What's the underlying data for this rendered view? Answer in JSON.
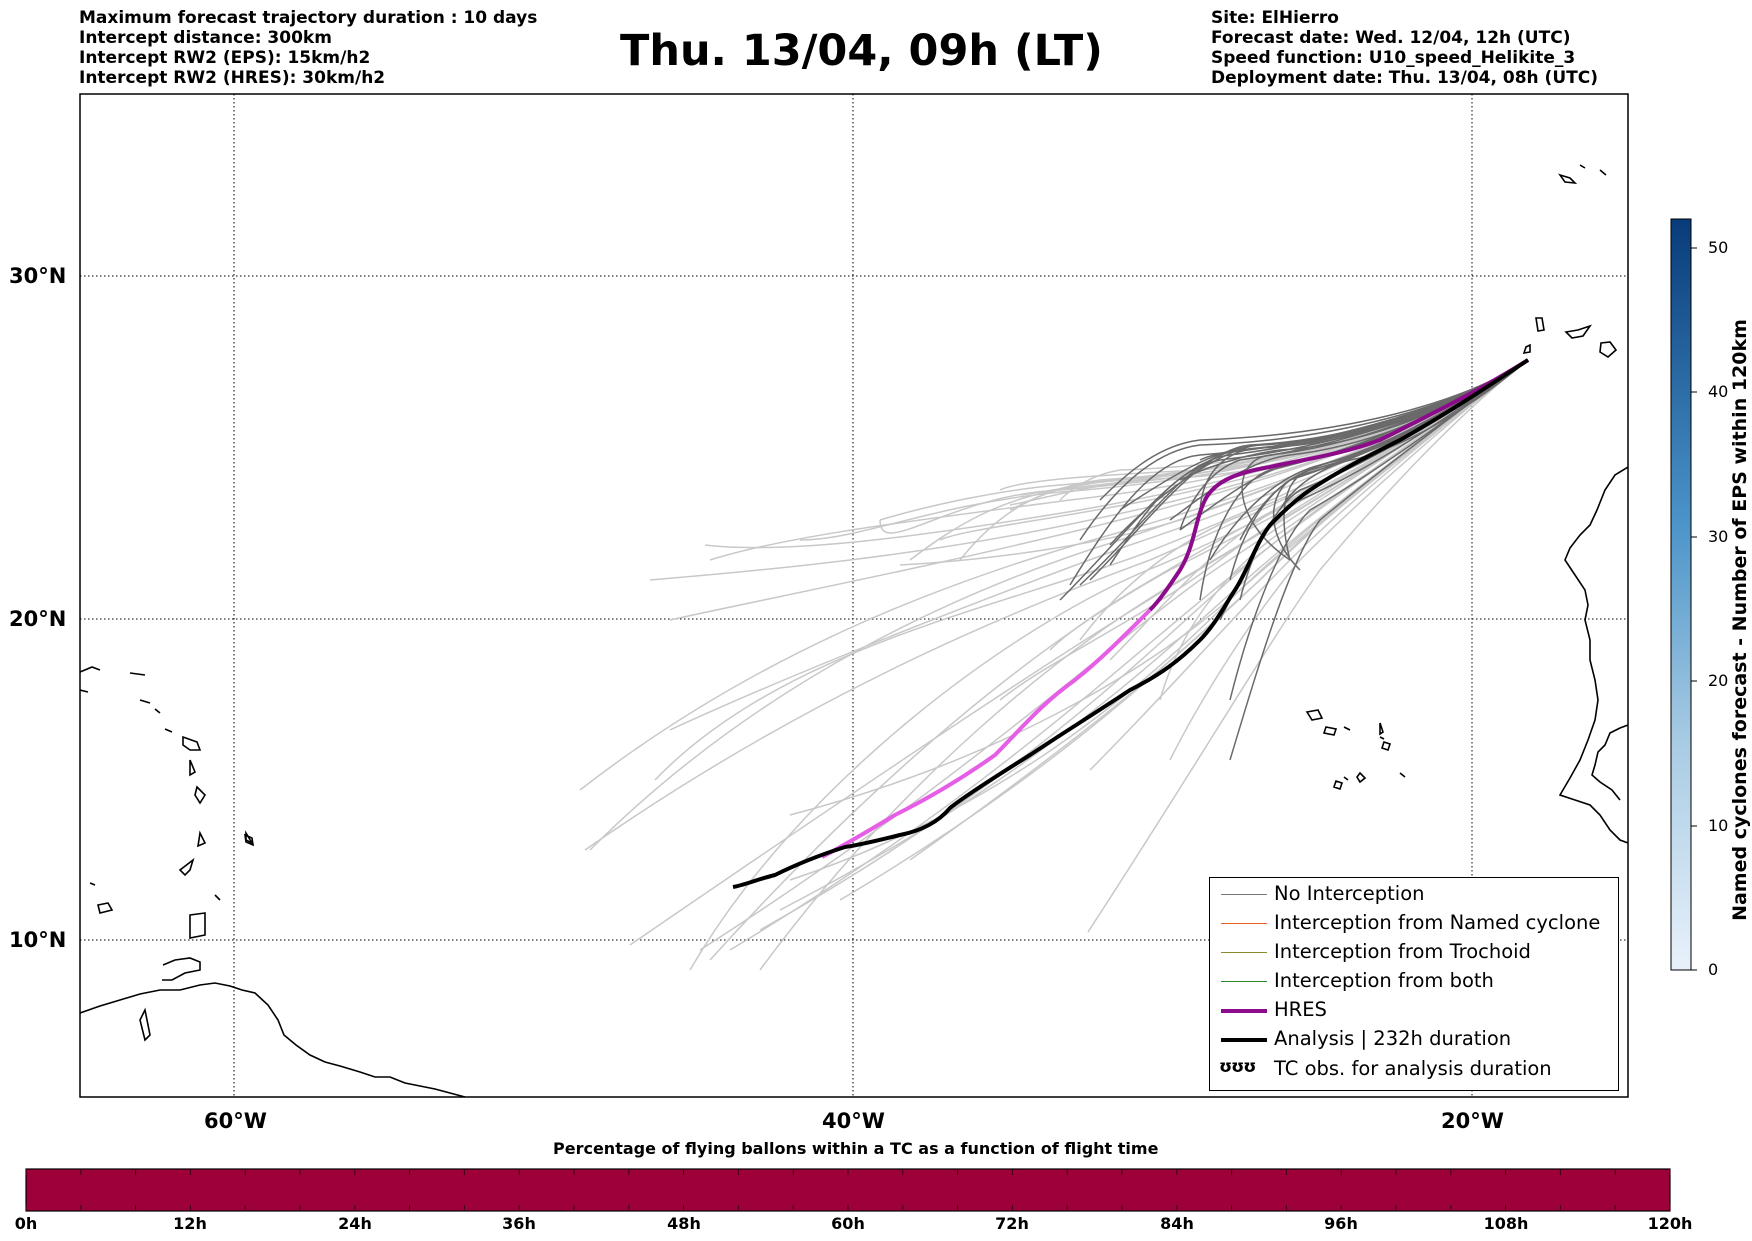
{
  "header": {
    "left_lines": [
      "Maximum forecast trajectory duration : 10 days",
      "Intercept distance: 300km",
      "Intercept RW2 (EPS):  15km/h2",
      "Intercept RW2 (HRES): 30km/h2"
    ],
    "title": "Thu. 13/04, 09h (LT)",
    "right_lines": [
      "Site: ElHierro",
      "Forecast date: Wed. 12/04, 12h (UTC)",
      "Speed function: U10_speed_Helikite_3",
      "Deployment date: Thu. 13/04, 08h (UTC)"
    ]
  },
  "map": {
    "lat_labels": [
      "30°N",
      "20°N",
      "10°N"
    ],
    "lon_labels": [
      "60°W",
      "40°W",
      "20°W"
    ],
    "site": {
      "name": "ElHierro",
      "lat": 27.7,
      "lon": -18.0
    },
    "hres_track_lonlat": [
      [
        -17.9,
        27.7
      ],
      [
        -19.5,
        26.8
      ],
      [
        -22.0,
        25.6
      ],
      [
        -25.0,
        24.8
      ],
      [
        -27.5,
        24.1
      ],
      [
        -28.6,
        23.0
      ],
      [
        -29.3,
        21.0
      ],
      [
        -31.0,
        19.4
      ],
      [
        -33.0,
        17.8
      ],
      [
        -35.5,
        15.8
      ],
      [
        -38.0,
        14.3
      ],
      [
        -40.8,
        13.3
      ]
    ],
    "analysis_track_lonlat": [
      [
        -17.9,
        27.7
      ],
      [
        -20.0,
        26.6
      ],
      [
        -22.5,
        25.2
      ],
      [
        -24.8,
        23.8
      ],
      [
        -26.0,
        22.3
      ],
      [
        -27.0,
        20.3
      ],
      [
        -28.5,
        18.8
      ],
      [
        -31.0,
        17.5
      ],
      [
        -33.5,
        16.2
      ],
      [
        -36.0,
        14.8
      ],
      [
        -38.3,
        13.2
      ],
      [
        -40.0,
        12.5
      ],
      [
        -42.0,
        12.0
      ],
      [
        -43.8,
        11.9
      ]
    ]
  },
  "legend": {
    "items": [
      {
        "label": "No Interception",
        "color": "#777777",
        "width": 1
      },
      {
        "label": "Interception from Named cyclone",
        "color": "#e9622a",
        "width": 1
      },
      {
        "label": "Interception from Trochoid",
        "color": "#8a8a2a",
        "width": 1
      },
      {
        "label": "Interception from both",
        "color": "#2a8a2a",
        "width": 1
      },
      {
        "label": "HRES",
        "color": "#8b0b8b",
        "width": 3.5
      },
      {
        "label": "Analysis | 232h duration",
        "color": "#000000",
        "width": 3.5
      }
    ],
    "tc_symbol": "ʊʊʊ",
    "tc_label": "TC obs. for analysis duration"
  },
  "colorbar": {
    "title": "Named cyclones forecast - Number of EPS within 120km",
    "ticks": [
      "0",
      "10",
      "20",
      "30",
      "40",
      "50"
    ],
    "min": 0,
    "max": 52,
    "color_low": "#e3eef9",
    "color_high": "#08306b"
  },
  "time_bar": {
    "title": "Percentage of flying ballons within a TC as a function of flight time",
    "tick_labels": [
      "0h",
      "12h",
      "24h",
      "36h",
      "48h",
      "60h",
      "72h",
      "84h",
      "96h",
      "108h",
      "120h"
    ],
    "fill_color": "#9e003a"
  }
}
